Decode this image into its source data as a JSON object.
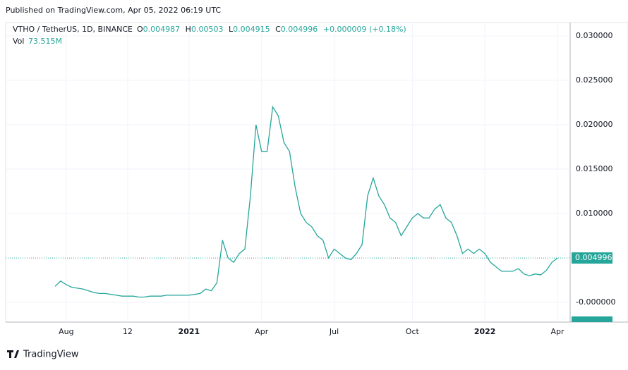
{
  "header": {
    "published": "Published on TradingView.com, Apr 05, 2022 06:19 UTC"
  },
  "chart_data": {
    "type": "line",
    "symbol": "VTHO / TetherUS, 1D, BINANCE",
    "ohlc": {
      "open_label": "O",
      "open": 0.004987,
      "high_label": "H",
      "high": 0.00503,
      "low_label": "L",
      "low": 0.004915,
      "close_label": "C",
      "close": 0.004996,
      "change": "+0.000009 (+0.18%)"
    },
    "volume": {
      "label": "Vol",
      "value": "73.515M"
    },
    "categories": [
      null,
      null,
      "Aug",
      null,
      null,
      null,
      null,
      null,
      null,
      null,
      null,
      null,
      null,
      "12",
      null,
      null,
      null,
      null,
      null,
      null,
      null,
      null,
      null,
      null,
      "2021",
      null,
      null,
      null,
      null,
      null,
      null,
      null,
      null,
      null,
      null,
      null,
      null,
      "Apr",
      null,
      null,
      null,
      null,
      null,
      null,
      null,
      null,
      null,
      null,
      null,
      null,
      "Jul",
      null,
      null,
      null,
      null,
      null,
      null,
      null,
      null,
      null,
      null,
      null,
      null,
      null,
      "Oct",
      null,
      null,
      null,
      null,
      null,
      null,
      null,
      null,
      null,
      null,
      null,
      null,
      "2022",
      null,
      null,
      null,
      null,
      null,
      null,
      null,
      null,
      null,
      null,
      null,
      null,
      "Apr"
    ],
    "series": [
      {
        "name": "VTHO / TetherUS",
        "color": "#26a69a",
        "values": [
          0.0018,
          0.0024,
          0.002,
          0.0017,
          0.0016,
          0.0015,
          0.0013,
          0.0011,
          0.001,
          0.001,
          0.0009,
          0.0008,
          0.0007,
          0.0007,
          0.0007,
          0.0006,
          0.0006,
          0.0007,
          0.0007,
          0.0007,
          0.0008,
          0.0008,
          0.0008,
          0.0008,
          0.0008,
          0.0009,
          0.001,
          0.0015,
          0.0013,
          0.0022,
          0.007,
          0.005,
          0.0045,
          0.0055,
          0.006,
          0.012,
          0.02,
          0.017,
          0.017,
          0.022,
          0.021,
          0.018,
          0.017,
          0.013,
          0.01,
          0.009,
          0.0085,
          0.0075,
          0.007,
          0.005,
          0.006,
          0.0055,
          0.005,
          0.0048,
          0.0055,
          0.0065,
          0.012,
          0.014,
          0.012,
          0.011,
          0.0095,
          0.009,
          0.0075,
          0.0085,
          0.0095,
          0.01,
          0.0095,
          0.0095,
          0.0105,
          0.011,
          0.0095,
          0.009,
          0.0075,
          0.0055,
          0.006,
          0.0055,
          0.006,
          0.0055,
          0.0045,
          0.004,
          0.0035,
          0.0035,
          0.0035,
          0.0038,
          0.0032,
          0.003,
          0.0032,
          0.0031,
          0.0036,
          0.0045,
          0.004996
        ]
      }
    ],
    "ylim": [
      -0.00222,
      0.03127
    ],
    "yticks": [
      {
        "value": 0.03,
        "label": "0.030000"
      },
      {
        "value": 0.025,
        "label": "0.025000"
      },
      {
        "value": 0.02,
        "label": "0.020000"
      },
      {
        "value": 0.015,
        "label": "0.015000"
      },
      {
        "value": 0.01,
        "label": "0.010000"
      },
      {
        "value": 0,
        "label": "-0.000000"
      }
    ],
    "grid": true
  },
  "footer": {
    "brand": "TradingView"
  }
}
